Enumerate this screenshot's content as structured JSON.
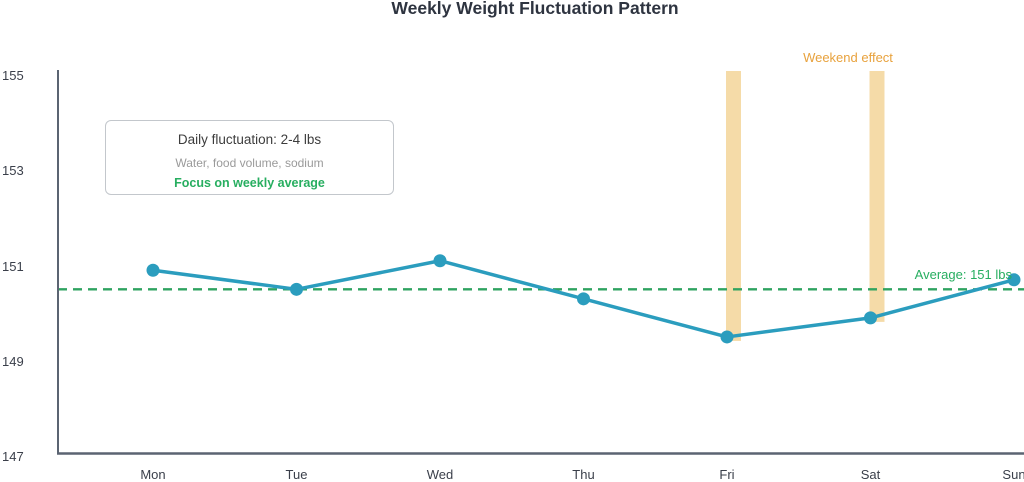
{
  "title": "Weekly Weight Fluctuation Pattern",
  "chart_data": {
    "type": "line",
    "categories": [
      "Mon",
      "Tue",
      "Wed",
      "Thu",
      "Fri",
      "Sat",
      "Sun"
    ],
    "values": [
      150.9,
      150.5,
      151.1,
      150.3,
      149.5,
      149.9,
      150.7
    ],
    "ylim": [
      147,
      155
    ],
    "yticks": [
      155,
      153,
      151,
      149,
      147
    ],
    "grid": false,
    "legend": "none",
    "average": {
      "value": 150.5,
      "label": "Average: 151 lbs"
    },
    "weekend_bars": {
      "days": [
        "Fri",
        "Sat"
      ],
      "label": "Weekend effect"
    }
  },
  "annotation_box": {
    "line1": "Daily fluctuation: 2-4 lbs",
    "line2": "Water, food volume, sodium",
    "line3": "Focus on weekly average"
  },
  "colors": {
    "line": "#2B9DBE",
    "average_line": "#2FA360",
    "average_text": "#27AE60",
    "weekend_bar": "#F5DBA8",
    "weekend_text": "#E8A23D",
    "title_text": "#2E3440",
    "axis": "#5B6472",
    "tick_text": "#3A3F4A"
  }
}
